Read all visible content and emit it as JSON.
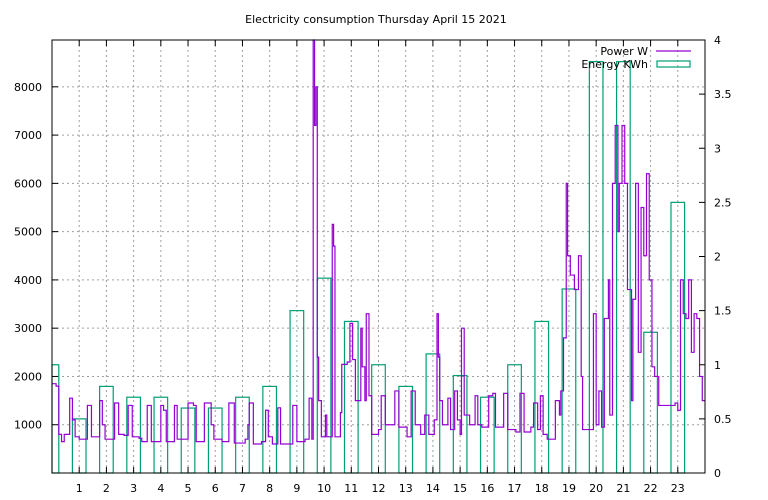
{
  "chart_data": {
    "type": "line",
    "title": "Electricity consumption Thursday April 15 2021",
    "xlabel": "",
    "ylabel": "",
    "xlim": [
      0,
      24
    ],
    "ylim": [
      0,
      8970
    ],
    "y2lim": [
      0,
      4
    ],
    "grid": true,
    "legend": "top-right",
    "x_ticks": [
      "1",
      "2",
      "3",
      "4",
      "5",
      "6",
      "7",
      "8",
      "9",
      "10",
      "11",
      "12",
      "13",
      "14",
      "15",
      "16",
      "17",
      "18",
      "19",
      "20",
      "21",
      "22",
      "23"
    ],
    "y_ticks": [
      "1000",
      "2000",
      "3000",
      "4000",
      "5000",
      "6000",
      "7000",
      "8000"
    ],
    "y2_ticks": [
      "0",
      "0.5",
      "1",
      "1.5",
      "2",
      "2.5",
      "3",
      "3.5",
      "4"
    ],
    "series": [
      {
        "name": "Power W",
        "axis": "left",
        "style": "steps",
        "color": "#9400d3",
        "points": [
          [
            0,
            1850
          ],
          [
            0.15,
            1800
          ],
          [
            0.25,
            800
          ],
          [
            0.35,
            650
          ],
          [
            0.45,
            800
          ],
          [
            0.65,
            1550
          ],
          [
            0.75,
            1100
          ],
          [
            0.85,
            750
          ],
          [
            1.0,
            700
          ],
          [
            1.3,
            1400
          ],
          [
            1.45,
            750
          ],
          [
            1.75,
            1500
          ],
          [
            1.85,
            1000
          ],
          [
            1.95,
            700
          ],
          [
            2.3,
            1450
          ],
          [
            2.45,
            800
          ],
          [
            2.65,
            780
          ],
          [
            2.8,
            1400
          ],
          [
            2.95,
            750
          ],
          [
            3.2,
            720
          ],
          [
            3.3,
            650
          ],
          [
            3.5,
            1400
          ],
          [
            3.65,
            650
          ],
          [
            3.95,
            650
          ],
          [
            4.0,
            1400
          ],
          [
            4.1,
            1300
          ],
          [
            4.2,
            650
          ],
          [
            4.5,
            1400
          ],
          [
            4.6,
            700
          ],
          [
            4.9,
            700
          ],
          [
            5.0,
            1450
          ],
          [
            5.2,
            1400
          ],
          [
            5.3,
            650
          ],
          [
            5.6,
            1450
          ],
          [
            5.85,
            1000
          ],
          [
            5.95,
            700
          ],
          [
            6.1,
            700
          ],
          [
            6.25,
            650
          ],
          [
            6.5,
            1450
          ],
          [
            6.7,
            620
          ],
          [
            7.1,
            700
          ],
          [
            7.2,
            1000
          ],
          [
            7.25,
            1450
          ],
          [
            7.4,
            600
          ],
          [
            7.7,
            650
          ],
          [
            7.85,
            1300
          ],
          [
            7.95,
            750
          ],
          [
            8.1,
            600
          ],
          [
            8.3,
            1350
          ],
          [
            8.4,
            600
          ],
          [
            8.7,
            600
          ],
          [
            8.85,
            1400
          ],
          [
            9.0,
            650
          ],
          [
            9.3,
            700
          ],
          [
            9.45,
            1550
          ],
          [
            9.55,
            700
          ],
          [
            9.6,
            9000
          ],
          [
            9.65,
            7200
          ],
          [
            9.7,
            8000
          ],
          [
            9.75,
            2400
          ],
          [
            9.8,
            1500
          ],
          [
            9.9,
            750
          ],
          [
            10.05,
            1200
          ],
          [
            10.1,
            750
          ],
          [
            10.3,
            5150
          ],
          [
            10.35,
            4700
          ],
          [
            10.4,
            750
          ],
          [
            10.6,
            1250
          ],
          [
            10.65,
            2250
          ],
          [
            10.85,
            2300
          ],
          [
            10.95,
            3100
          ],
          [
            11.05,
            2350
          ],
          [
            11.15,
            1500
          ],
          [
            11.35,
            3000
          ],
          [
            11.4,
            2200
          ],
          [
            11.5,
            1500
          ],
          [
            11.55,
            3300
          ],
          [
            11.65,
            1600
          ],
          [
            11.75,
            800
          ],
          [
            12.0,
            900
          ],
          [
            12.1,
            1600
          ],
          [
            12.25,
            1000
          ],
          [
            12.5,
            1000
          ],
          [
            12.6,
            1700
          ],
          [
            12.75,
            950
          ],
          [
            13.05,
            750
          ],
          [
            13.2,
            1700
          ],
          [
            13.35,
            1000
          ],
          [
            13.55,
            800
          ],
          [
            13.7,
            1200
          ],
          [
            13.85,
            800
          ],
          [
            14.05,
            1100
          ],
          [
            14.15,
            3300
          ],
          [
            14.2,
            2400
          ],
          [
            14.25,
            1500
          ],
          [
            14.35,
            1000
          ],
          [
            14.55,
            1550
          ],
          [
            14.65,
            900
          ],
          [
            14.8,
            1700
          ],
          [
            14.9,
            1100
          ],
          [
            15.0,
            800
          ],
          [
            15.05,
            3000
          ],
          [
            15.15,
            1200
          ],
          [
            15.35,
            1000
          ],
          [
            15.55,
            1600
          ],
          [
            15.65,
            1000
          ],
          [
            15.8,
            950
          ],
          [
            16.05,
            1600
          ],
          [
            16.2,
            1650
          ],
          [
            16.3,
            950
          ],
          [
            16.6,
            1650
          ],
          [
            16.75,
            900
          ],
          [
            17.05,
            850
          ],
          [
            17.2,
            1650
          ],
          [
            17.35,
            850
          ],
          [
            17.6,
            950
          ],
          [
            17.7,
            1450
          ],
          [
            17.85,
            900
          ],
          [
            17.95,
            1600
          ],
          [
            18.05,
            800
          ],
          [
            18.2,
            700
          ],
          [
            18.5,
            1500
          ],
          [
            18.65,
            1200
          ],
          [
            18.7,
            1700
          ],
          [
            18.8,
            2800
          ],
          [
            18.9,
            6000
          ],
          [
            18.95,
            4500
          ],
          [
            19.05,
            4100
          ],
          [
            19.2,
            3800
          ],
          [
            19.35,
            4500
          ],
          [
            19.45,
            2000
          ],
          [
            19.5,
            900
          ],
          [
            19.8,
            900
          ],
          [
            19.9,
            3300
          ],
          [
            20.0,
            1000
          ],
          [
            20.1,
            1700
          ],
          [
            20.2,
            950
          ],
          [
            20.3,
            3200
          ],
          [
            20.45,
            4000
          ],
          [
            20.5,
            1200
          ],
          [
            20.6,
            6000
          ],
          [
            20.7,
            7200
          ],
          [
            20.8,
            5000
          ],
          [
            20.85,
            6000
          ],
          [
            20.95,
            7200
          ],
          [
            21.05,
            6000
          ],
          [
            21.15,
            3800
          ],
          [
            21.3,
            1500
          ],
          [
            21.35,
            3600
          ],
          [
            21.45,
            6000
          ],
          [
            21.55,
            2500
          ],
          [
            21.65,
            5500
          ],
          [
            21.75,
            4500
          ],
          [
            21.85,
            6200
          ],
          [
            21.95,
            4000
          ],
          [
            22.05,
            2200
          ],
          [
            22.15,
            2000
          ],
          [
            22.3,
            1400
          ],
          [
            22.5,
            1400
          ],
          [
            22.9,
            1450
          ],
          [
            23.0,
            1300
          ],
          [
            23.1,
            4000
          ],
          [
            23.2,
            3300
          ],
          [
            23.3,
            3200
          ],
          [
            23.4,
            4000
          ],
          [
            23.5,
            2500
          ],
          [
            23.6,
            3300
          ],
          [
            23.7,
            3200
          ],
          [
            23.8,
            2000
          ],
          [
            23.9,
            1500
          ],
          [
            24.0,
            1500
          ]
        ]
      },
      {
        "name": "Energy KWh",
        "axis": "right",
        "style": "boxes",
        "color": "#009e73",
        "x": [
          0,
          1,
          2,
          3,
          4,
          5,
          6,
          7,
          8,
          9,
          10,
          11,
          12,
          13,
          14,
          15,
          16,
          17,
          18,
          19,
          20,
          21,
          22,
          23
        ],
        "values": [
          1.0,
          0.5,
          0.8,
          0.7,
          0.7,
          0.6,
          0.6,
          0.7,
          0.8,
          1.5,
          1.8,
          1.4,
          1.0,
          0.8,
          1.1,
          0.9,
          0.7,
          1.0,
          1.4,
          1.7,
          3.8,
          3.8,
          1.3,
          2.5
        ]
      }
    ]
  }
}
